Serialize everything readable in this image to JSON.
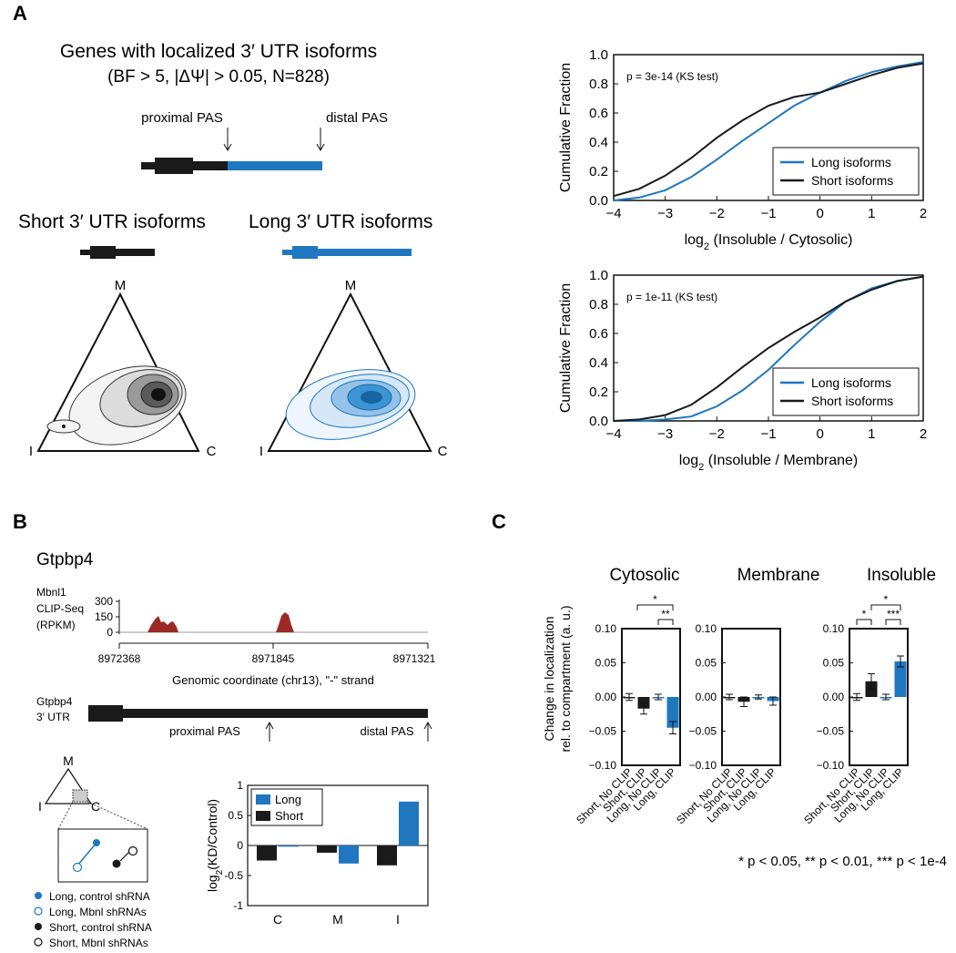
{
  "panel_a": {
    "letter": "A",
    "title_line1": "Genes with localized 3′ UTR isoforms",
    "title_line2": "(BF > 5, |ΔΨ| > 0.05, N=828)",
    "proximal_pas": "proximal PAS",
    "distal_pas": "distal PAS",
    "short_label": "Short 3′ UTR isoforms",
    "long_label": "Long 3′ UTR isoforms",
    "tri_m": "M",
    "tri_i": "I",
    "tri_c": "C"
  },
  "panel_b": {
    "letter": "B",
    "gene": "Gtpbp4",
    "clip_label_1": "Mbnl1",
    "clip_label_2": "CLIP-Seq",
    "clip_label_3": "(RPKM)",
    "clip_yticks": [
      "300",
      "150",
      "0"
    ],
    "coord_ticks": [
      "8972368",
      "8971845",
      "8971321"
    ],
    "coord_label": "Genomic coordinate (chr13), \"-\" strand",
    "utr_label_1": "Gtpbp4",
    "utr_label_2": "3′ UTR",
    "proximal_pas": "proximal PAS",
    "distal_pas": "distal PAS",
    "mini_m": "M",
    "mini_i": "I",
    "mini_c": "C",
    "legend": [
      "Long, control shRNA",
      "Long, Mbnl shRNAs",
      "Short, control shRNA",
      "Short, Mbnl shRNAs"
    ]
  },
  "panel_c": {
    "letter": "C",
    "compartments": [
      "Cytosolic",
      "Membrane",
      "Insoluble"
    ],
    "ylabel_1": "Change in localization",
    "ylabel_2": "rel. to compartment (a. u.)",
    "yticks": [
      "0.10",
      "0.05",
      "0.00",
      "−0.05",
      "−0.10"
    ],
    "xcats": [
      "Short, No CLIP",
      "Short, CLIP",
      "Long, No CLIP",
      "Long, CLIP"
    ],
    "sig_cyto": [
      "*",
      "**"
    ],
    "sig_insol": [
      "*",
      "*",
      "***"
    ],
    "footnote": "* p < 0.05, ** p < 0.01, *** p < 1e-4"
  },
  "colors": {
    "blue": "#1f77c0",
    "black": "#1a1a1a",
    "clip_red": "#9b2a24"
  },
  "chart_data": [
    {
      "type": "line",
      "title": "",
      "annotation": "p = 3e-14 (KS test)",
      "xlabel": "log2 (Insoluble / Cytosolic)",
      "ylabel": "Cumulative Fraction",
      "xlim": [
        -4,
        2
      ],
      "ylim": [
        0,
        1.0
      ],
      "xticks": [
        -4,
        -3,
        -2,
        -1,
        0,
        1,
        2
      ],
      "yticks": [
        0.0,
        0.2,
        0.4,
        0.6,
        0.8,
        1.0
      ],
      "legend": [
        "Long isoforms",
        "Short isoforms"
      ],
      "series": [
        {
          "name": "Long isoforms",
          "color": "#1f77c0",
          "x": [
            -4,
            -3.5,
            -3,
            -2.5,
            -2,
            -1.5,
            -1,
            -0.5,
            0,
            0.5,
            1,
            1.5,
            2
          ],
          "y": [
            0.0,
            0.02,
            0.07,
            0.16,
            0.28,
            0.41,
            0.53,
            0.65,
            0.74,
            0.82,
            0.88,
            0.92,
            0.95
          ]
        },
        {
          "name": "Short isoforms",
          "color": "#1a1a1a",
          "x": [
            -4,
            -3.5,
            -3,
            -2.5,
            -2,
            -1.5,
            -1,
            -0.5,
            0,
            0.5,
            1,
            1.5,
            2
          ],
          "y": [
            0.03,
            0.08,
            0.17,
            0.29,
            0.43,
            0.55,
            0.65,
            0.71,
            0.74,
            0.8,
            0.86,
            0.91,
            0.94
          ]
        }
      ]
    },
    {
      "type": "line",
      "title": "",
      "annotation": "p = 1e-11 (KS test)",
      "xlabel": "log2 (Insoluble / Membrane)",
      "ylabel": "Cumulative Fraction",
      "xlim": [
        -4,
        2
      ],
      "ylim": [
        0,
        1.0
      ],
      "xticks": [
        -4,
        -3,
        -2,
        -1,
        0,
        1,
        2
      ],
      "yticks": [
        0.0,
        0.2,
        0.4,
        0.6,
        0.8,
        1.0
      ],
      "legend": [
        "Long isoforms",
        "Short isoforms"
      ],
      "series": [
        {
          "name": "Long isoforms",
          "color": "#1f77c0",
          "x": [
            -4,
            -3.5,
            -3,
            -2.5,
            -2,
            -1.5,
            -1,
            -0.5,
            0,
            0.5,
            1,
            1.5,
            2
          ],
          "y": [
            0.0,
            0.0,
            0.01,
            0.03,
            0.1,
            0.21,
            0.35,
            0.52,
            0.68,
            0.82,
            0.91,
            0.96,
            0.99
          ]
        },
        {
          "name": "Short isoforms",
          "color": "#1a1a1a",
          "x": [
            -4,
            -3.5,
            -3,
            -2.5,
            -2,
            -1.5,
            -1,
            -0.5,
            0,
            0.5,
            1,
            1.5,
            2
          ],
          "y": [
            0.0,
            0.01,
            0.04,
            0.11,
            0.23,
            0.37,
            0.5,
            0.61,
            0.71,
            0.82,
            0.9,
            0.96,
            0.99
          ]
        }
      ]
    },
    {
      "type": "bar",
      "title": "",
      "ylabel": "log2(KD/Control)",
      "categories": [
        "C",
        "M",
        "I"
      ],
      "ylim": [
        -1,
        1
      ],
      "yticks": [
        1,
        0.5,
        0,
        -0.5,
        -1
      ],
      "legend": [
        "Long",
        "Short"
      ],
      "series": [
        {
          "name": "Short",
          "color": "#1a1a1a",
          "values": [
            -0.25,
            -0.12,
            -0.33
          ]
        },
        {
          "name": "Long",
          "color": "#1f77c0",
          "values": [
            -0.02,
            -0.3,
            0.73
          ]
        }
      ]
    },
    {
      "type": "bar",
      "title": "Cytosolic",
      "categories": [
        "Short, No CLIP",
        "Short, CLIP",
        "Long, No CLIP",
        "Long, CLIP"
      ],
      "ylim": [
        -0.1,
        0.1
      ],
      "values": [
        0.0,
        -0.017,
        0.0,
        -0.045
      ],
      "errors": [
        0.005,
        0.008,
        0.004,
        0.009
      ],
      "colors": [
        "#1a1a1a",
        "#1a1a1a",
        "#1f77c0",
        "#1f77c0"
      ]
    },
    {
      "type": "bar",
      "title": "Membrane",
      "categories": [
        "Short, No CLIP",
        "Short, CLIP",
        "Long, No CLIP",
        "Long, CLIP"
      ],
      "ylim": [
        -0.1,
        0.1
      ],
      "values": [
        0.0,
        -0.007,
        0.0,
        -0.006
      ],
      "errors": [
        0.004,
        0.007,
        0.003,
        0.006
      ],
      "colors": [
        "#1a1a1a",
        "#1a1a1a",
        "#1f77c0",
        "#1f77c0"
      ]
    },
    {
      "type": "bar",
      "title": "Insoluble",
      "categories": [
        "Short, No CLIP",
        "Short, CLIP",
        "Long, No CLIP",
        "Long, CLIP"
      ],
      "ylim": [
        -0.1,
        0.1
      ],
      "values": [
        0.0,
        0.023,
        0.0,
        0.052
      ],
      "errors": [
        0.005,
        0.011,
        0.004,
        0.008
      ],
      "colors": [
        "#1a1a1a",
        "#1a1a1a",
        "#1f77c0",
        "#1f77c0"
      ]
    }
  ]
}
